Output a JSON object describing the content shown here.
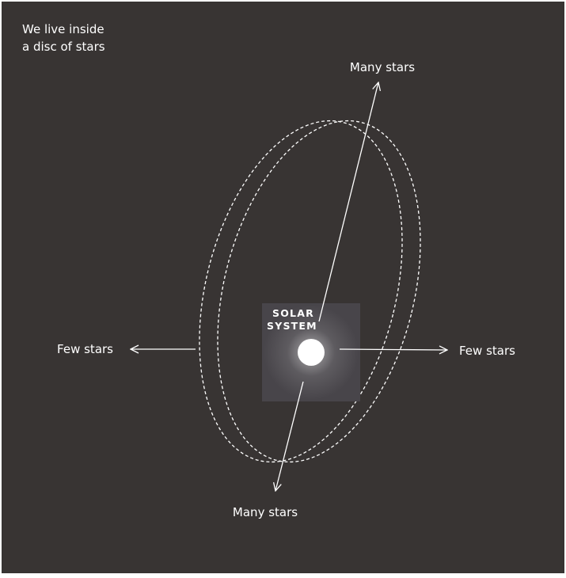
{
  "title": [
    "We live inside",
    "a disc of stars"
  ],
  "labels": {
    "top": "Many stars",
    "bottom": "Many stars",
    "left": "Few stars",
    "right": "Few stars",
    "center": [
      "SOLAR",
      "SYSTEM"
    ]
  }
}
